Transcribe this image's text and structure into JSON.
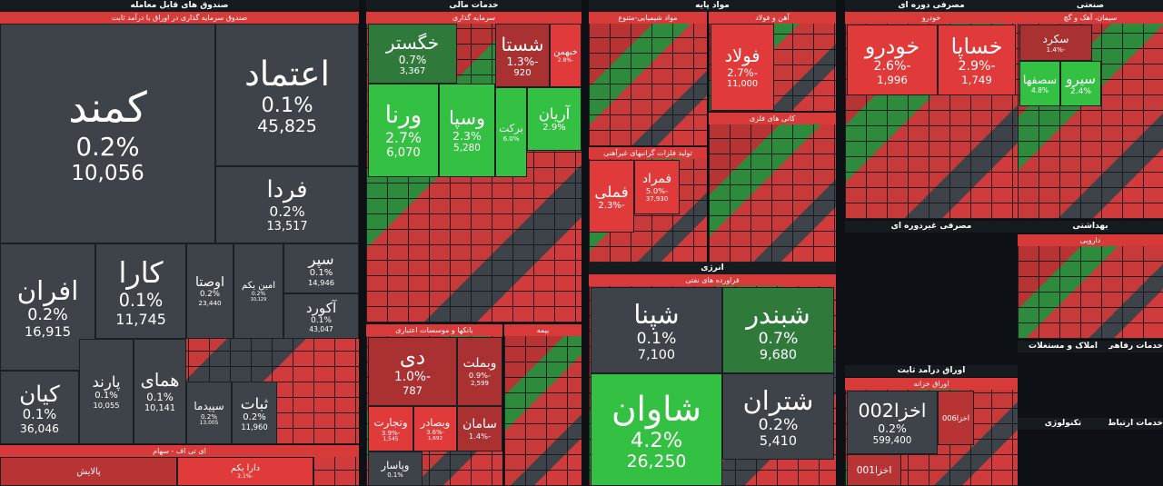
{
  "chart_data": {
    "type": "treemap",
    "sector_headers": [
      "صندوق های قابل معامله",
      "خدمات مالی",
      "مواد پایه",
      "مصرفی دوره ای",
      "صنعتی",
      "انرژی",
      "مصرفی غیردوره ای",
      "اوراق درآمد ثابت",
      "بهداشتی",
      "املاک و مستغلات",
      "خدمات رفاهی",
      "تکنولوژی",
      "خدمات ارتباطی"
    ],
    "groups": [
      {
        "title": "صندوق سرمایه گذاری در اوراق با درآمد ثابت",
        "tiles": [
          {
            "name": "کمند",
            "change": 0.2,
            "change_label": "0.2%",
            "value": "10,056"
          },
          {
            "name": "اعتماد",
            "change": 0.1,
            "change_label": "0.1%",
            "value": "45,825"
          },
          {
            "name": "فردا",
            "change": 0.2,
            "change_label": "0.2%",
            "value": "13,517"
          },
          {
            "name": "افران",
            "change": 0.2,
            "change_label": "0.2%",
            "value": "16,915"
          },
          {
            "name": "کارا",
            "change": 0.1,
            "change_label": "0.1%",
            "value": "11,745"
          },
          {
            "name": "اوصتا",
            "change": 0.2,
            "change_label": "0.2%",
            "value": "23,440"
          },
          {
            "name": "امین یکم",
            "change": 0.2,
            "change_label": "0.2%",
            "value": "10,129"
          },
          {
            "name": "سپر",
            "change": 0.1,
            "change_label": "0.1%",
            "value": "14,946"
          },
          {
            "name": "آکورد",
            "change": 0.1,
            "change_label": "0.1%",
            "value": "43,047"
          },
          {
            "name": "کیان",
            "change": 0.1,
            "change_label": "0.1%",
            "value": "36,046"
          },
          {
            "name": "پارند",
            "change": 0.1,
            "change_label": "0.1%",
            "value": "10,055"
          },
          {
            "name": "همای",
            "change": 0.1,
            "change_label": "0.1%",
            "value": "10,141"
          },
          {
            "name": "سپیدما",
            "change": 0.2,
            "change_label": "0.2%",
            "value": "13,005"
          },
          {
            "name": "ثبات",
            "change": 0.2,
            "change_label": "0.2%",
            "value": "11,960"
          }
        ]
      },
      {
        "title": "ای تی اف - سهام",
        "tiles": [
          {
            "name": "پالایش"
          },
          {
            "name": "دارا یکم",
            "change": -2.1,
            "change_label": "-2.1%"
          }
        ]
      },
      {
        "title": "سرمایه گذاری",
        "tiles": [
          {
            "name": "خگستر",
            "change": 0.7,
            "change_label": "0.7%",
            "value": "3,367"
          },
          {
            "name": "شستا",
            "change": -1.3,
            "change_label": "-1.3%",
            "value": "920"
          },
          {
            "name": "خبهمن",
            "change": -2.8,
            "change_label": "-2.8%"
          },
          {
            "name": "ورنا",
            "change": 2.7,
            "change_label": "2.7%",
            "value": "6,070"
          },
          {
            "name": "وسپا",
            "change": 2.3,
            "change_label": "2.3%",
            "value": "5,280"
          },
          {
            "name": "برکت",
            "change": 6.0,
            "change_label": "6.0%"
          },
          {
            "name": "آریان",
            "change": 2.9,
            "change_label": "2.9%"
          }
        ]
      },
      {
        "title": "بانکها و موسسات اعتباری",
        "tiles": [
          {
            "name": "دی",
            "change": -1.0,
            "change_label": "-1.0%",
            "value": "787"
          },
          {
            "name": "وبملت",
            "change": -0.9,
            "change_label": "-0.9%",
            "value": "2,599"
          },
          {
            "name": "وتجارت",
            "change": -3.9,
            "change_label": "-3.9%",
            "value": "1,545"
          },
          {
            "name": "وبصادر",
            "change": -3.6,
            "change_label": "-3.6%",
            "value": "1,692"
          },
          {
            "name": "سامان",
            "change": -1.4,
            "change_label": "-1.4%"
          },
          {
            "name": "وپاسار",
            "change": 0.1,
            "change_label": "0.1%"
          }
        ]
      },
      {
        "title": "بیمه",
        "tiles": []
      },
      {
        "title": "مواد شیمیایی-متنوع",
        "tiles": []
      },
      {
        "title": "آهن و فولاد",
        "tiles": [
          {
            "name": "فولاد",
            "change": -2.7,
            "change_label": "-2.7%",
            "value": "11,000"
          }
        ]
      },
      {
        "title": "تولید فلزات گرانبهای غیرآهنی",
        "tiles": [
          {
            "name": "فملی",
            "change": -2.3,
            "change_label": "-2.3%"
          },
          {
            "name": "فمراد",
            "change": -5.0,
            "change_label": "-5.0%",
            "value": "37,930"
          }
        ]
      },
      {
        "title": "کانی های فلزی",
        "tiles": []
      },
      {
        "title": "فراورده های نفتی",
        "tiles": [
          {
            "name": "شپنا",
            "change": 0.1,
            "change_label": "0.1%",
            "value": "7,100"
          },
          {
            "name": "شبندر",
            "change": 0.7,
            "change_label": "0.7%",
            "value": "9,680"
          },
          {
            "name": "شاوان",
            "change": 4.2,
            "change_label": "4.2%",
            "value": "26,250"
          },
          {
            "name": "شتران",
            "change": 0.2,
            "change_label": "0.2%",
            "value": "5,410"
          }
        ]
      },
      {
        "title": "خودرو",
        "tiles": [
          {
            "name": "خودرو",
            "change": -2.6,
            "change_label": "-2.6%",
            "value": "1,996"
          },
          {
            "name": "خساپا",
            "change": -2.9,
            "change_label": "-2.9%",
            "value": "1,749"
          }
        ]
      },
      {
        "title": "سیمان، آهک و گچ",
        "tiles": [
          {
            "name": "سکرد",
            "change": -1.4,
            "change_label": "-1.4%"
          },
          {
            "name": "سصفها",
            "change": 4.8,
            "change_label": "4.8%"
          },
          {
            "name": "سیرو",
            "change": 2.4,
            "change_label": "2.4%"
          }
        ]
      },
      {
        "title": "اوراق خزانه",
        "tiles": [
          {
            "name": "اخزا002",
            "change": 0.2,
            "change_label": "0.2%",
            "value": "599,400"
          },
          {
            "name": "اخزا006"
          },
          {
            "name": "اخزا001"
          }
        ]
      },
      {
        "title": "دارویی",
        "tiles": []
      }
    ]
  }
}
